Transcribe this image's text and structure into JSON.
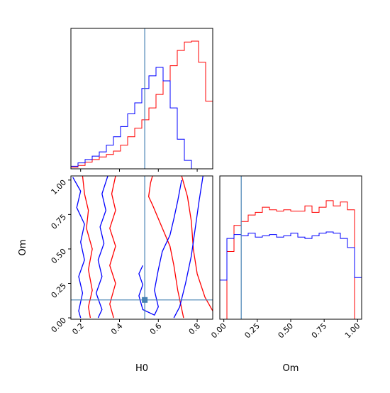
{
  "chart_data": [
    {
      "type": "histogram",
      "panel": "H0 marginal",
      "xlim": [
        0.15,
        0.88
      ],
      "truth": 0.53,
      "bin_edges": [
        0.15,
        0.1865,
        0.223,
        0.2595,
        0.296,
        0.3325,
        0.369,
        0.4055,
        0.442,
        0.4785,
        0.515,
        0.5515,
        0.588,
        0.6245,
        0.661,
        0.6975,
        0.734,
        0.7705,
        0.807,
        0.8435,
        0.88
      ],
      "series": [
        {
          "color": "#ff0000",
          "values": [
            2,
            4,
            8,
            11,
            14,
            17,
            21,
            28,
            38,
            48,
            58,
            72,
            88,
            104,
            122,
            140,
            150,
            151,
            126,
            80
          ]
        },
        {
          "color": "#0000ff",
          "values": [
            3,
            7,
            11,
            15,
            20,
            28,
            38,
            50,
            65,
            78,
            95,
            110,
            120,
            104,
            72,
            35,
            10,
            0,
            0,
            0
          ]
        }
      ]
    },
    {
      "type": "histogram",
      "panel": "Om marginal",
      "xlim": [
        -0.03,
        1.03
      ],
      "xlabel": "Om",
      "truth": 0.13,
      "xticks": [
        "0.00",
        "0.25",
        "0.50",
        "0.75",
        "1.00"
      ],
      "bin_edges": [
        -0.03,
        0.023,
        0.076,
        0.129,
        0.182,
        0.235,
        0.288,
        0.341,
        0.394,
        0.447,
        0.5,
        0.553,
        0.606,
        0.659,
        0.712,
        0.765,
        0.818,
        0.871,
        0.924,
        0.977,
        1.03
      ],
      "series": [
        {
          "color": "#ff0000",
          "values": [
            0,
            0.52,
            0.72,
            0.75,
            0.8,
            0.82,
            0.86,
            0.84,
            0.83,
            0.84,
            0.83,
            0.83,
            0.87,
            0.82,
            0.86,
            0.91,
            0.87,
            0.9,
            0.84,
            0.0
          ]
        },
        {
          "color": "#0000ff",
          "values": [
            0.3,
            0.62,
            0.65,
            0.64,
            0.66,
            0.63,
            0.64,
            0.65,
            0.63,
            0.64,
            0.66,
            0.63,
            0.62,
            0.64,
            0.66,
            0.67,
            0.66,
            0.62,
            0.55,
            0.32
          ]
        }
      ]
    },
    {
      "type": "contour",
      "panel": "H0 vs Om joint",
      "xlim": [
        0.15,
        0.88
      ],
      "ylim": [
        -0.01,
        1.03
      ],
      "xlabel": "H0",
      "ylabel": "Om",
      "truth": {
        "x": 0.53,
        "y": 0.13
      },
      "xticks": [
        "0.2",
        "0.4",
        "0.6",
        "0.8"
      ],
      "yticks": [
        "0.00",
        "0.25",
        "0.50",
        "0.75",
        "1.00"
      ],
      "series": [
        {
          "color": "#ff0000",
          "contours": [
            [
              [
                0.9,
                0.0
              ],
              [
                0.84,
                0.15
              ],
              [
                0.8,
                0.32
              ],
              [
                0.78,
                0.5
              ],
              [
                0.77,
                0.7
              ],
              [
                0.75,
                0.88
              ],
              [
                0.72,
                1.03
              ]
            ],
            [
              [
                0.73,
                0.0
              ],
              [
                0.7,
                0.2
              ],
              [
                0.68,
                0.38
              ],
              [
                0.66,
                0.52
              ],
              [
                0.63,
                0.62
              ],
              [
                0.6,
                0.72
              ],
              [
                0.57,
                0.82
              ],
              [
                0.55,
                0.88
              ],
              [
                0.56,
                0.98
              ],
              [
                0.57,
                1.03
              ]
            ],
            [
              [
                0.21,
                1.03
              ],
              [
                0.22,
                0.9
              ],
              [
                0.24,
                0.78
              ],
              [
                0.23,
                0.65
              ],
              [
                0.26,
                0.5
              ],
              [
                0.24,
                0.35
              ],
              [
                0.26,
                0.2
              ],
              [
                0.24,
                0.08
              ],
              [
                0.25,
                0.0
              ]
            ],
            [
              [
                0.38,
                1.03
              ],
              [
                0.36,
                0.9
              ],
              [
                0.38,
                0.78
              ],
              [
                0.35,
                0.65
              ],
              [
                0.38,
                0.52
              ],
              [
                0.35,
                0.38
              ],
              [
                0.38,
                0.25
              ],
              [
                0.35,
                0.1
              ],
              [
                0.37,
                0.0
              ]
            ]
          ]
        },
        {
          "color": "#0000ff",
          "contours": [
            [
              [
                0.83,
                1.03
              ],
              [
                0.81,
                0.85
              ],
              [
                0.79,
                0.65
              ],
              [
                0.77,
                0.45
              ],
              [
                0.74,
                0.25
              ],
              [
                0.71,
                0.08
              ],
              [
                0.68,
                0.0
              ]
            ],
            [
              [
                0.72,
                1.0
              ],
              [
                0.7,
                0.85
              ],
              [
                0.68,
                0.72
              ],
              [
                0.66,
                0.6
              ],
              [
                0.62,
                0.48
              ],
              [
                0.6,
                0.35
              ],
              [
                0.58,
                0.2
              ],
              [
                0.6,
                0.08
              ],
              [
                0.58,
                0.02
              ],
              [
                0.52,
                0.06
              ],
              [
                0.5,
                0.16
              ],
              [
                0.52,
                0.24
              ],
              [
                0.5,
                0.32
              ],
              [
                0.52,
                0.38
              ]
            ],
            [
              [
                0.16,
                1.02
              ],
              [
                0.2,
                0.92
              ],
              [
                0.18,
                0.8
              ],
              [
                0.22,
                0.68
              ],
              [
                0.2,
                0.55
              ],
              [
                0.22,
                0.42
              ],
              [
                0.19,
                0.3
              ],
              [
                0.21,
                0.18
              ],
              [
                0.19,
                0.05
              ],
              [
                0.2,
                0.0
              ]
            ],
            [
              [
                0.34,
                1.03
              ],
              [
                0.31,
                0.9
              ],
              [
                0.33,
                0.78
              ],
              [
                0.3,
                0.66
              ],
              [
                0.32,
                0.54
              ],
              [
                0.29,
                0.42
              ],
              [
                0.31,
                0.3
              ],
              [
                0.28,
                0.18
              ],
              [
                0.31,
                0.06
              ],
              [
                0.29,
                0.0
              ]
            ]
          ]
        }
      ]
    }
  ]
}
